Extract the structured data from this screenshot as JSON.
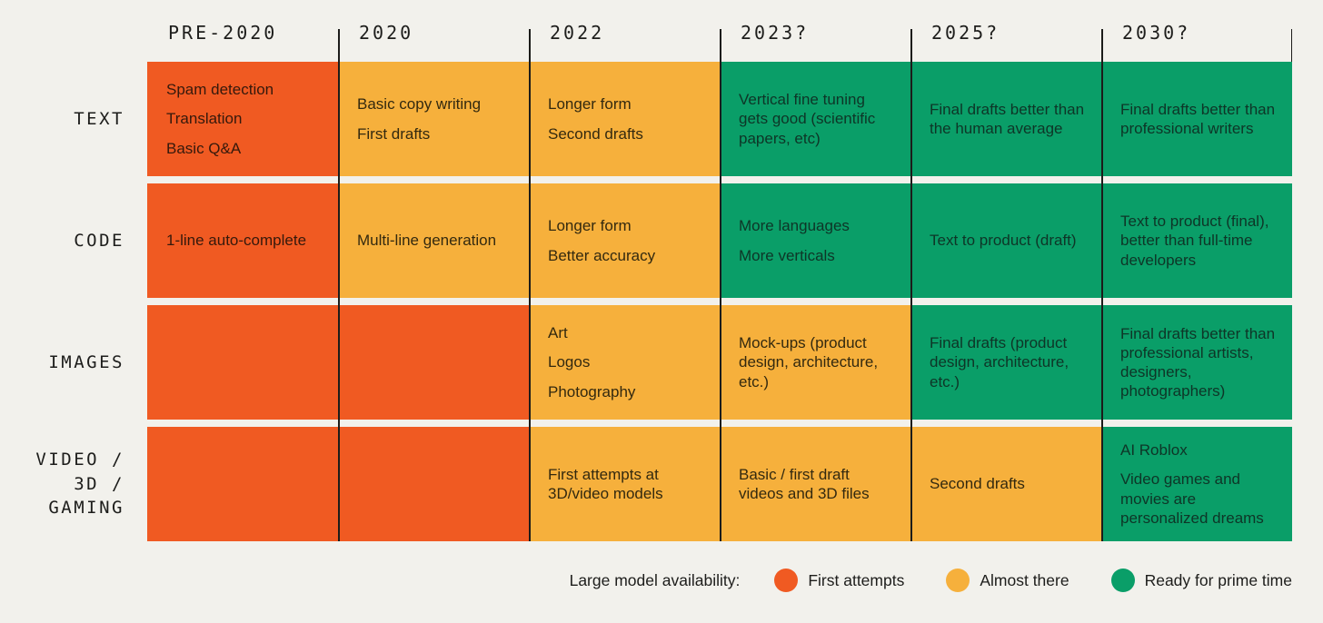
{
  "colors": {
    "background": "#f2f1ec",
    "first_attempts": "#f05a22",
    "almost_there": "#f6b03c",
    "ready": "#0a9e68",
    "heading_text": "#1d1d1b",
    "grid_line": "#1c1c1a",
    "text_on_first_attempts": "#35190c",
    "text_on_almost_there": "#33290f",
    "text_on_ready": "#0e3527"
  },
  "columns": [
    "PRE-2020",
    "2020",
    "2022",
    "2023?",
    "2025?",
    "2030?"
  ],
  "rows": [
    {
      "label_lines": [
        "TEXT"
      ],
      "cells": [
        {
          "status": "first_attempts",
          "items": [
            "Spam detection",
            "Translation",
            "Basic Q&A"
          ]
        },
        {
          "status": "almost_there",
          "items": [
            "Basic copy writing",
            "First drafts"
          ]
        },
        {
          "status": "almost_there",
          "items": [
            "Longer form",
            "Second drafts"
          ]
        },
        {
          "status": "ready",
          "items": [
            "Vertical fine tuning gets good (scientific papers, etc)"
          ]
        },
        {
          "status": "ready",
          "items": [
            "Final drafts better than the human average"
          ]
        },
        {
          "status": "ready",
          "items": [
            "Final drafts better than professional writers"
          ]
        }
      ]
    },
    {
      "label_lines": [
        "CODE"
      ],
      "cells": [
        {
          "status": "first_attempts",
          "items": [
            "1-line auto-complete"
          ]
        },
        {
          "status": "almost_there",
          "items": [
            "Multi-line generation"
          ]
        },
        {
          "status": "almost_there",
          "items": [
            "Longer form",
            "Better accuracy"
          ]
        },
        {
          "status": "ready",
          "items": [
            "More languages",
            "More verticals"
          ]
        },
        {
          "status": "ready",
          "items": [
            "Text to product (draft)"
          ]
        },
        {
          "status": "ready",
          "items": [
            "Text to product (final), better than full-time developers"
          ]
        }
      ]
    },
    {
      "label_lines": [
        "IMAGES"
      ],
      "cells": [
        {
          "status": "first_attempts",
          "items": []
        },
        {
          "status": "first_attempts",
          "items": []
        },
        {
          "status": "almost_there",
          "items": [
            "Art",
            "Logos",
            "Photography"
          ]
        },
        {
          "status": "almost_there",
          "items": [
            "Mock-ups (product design, architecture, etc.)"
          ]
        },
        {
          "status": "ready",
          "items": [
            "Final drafts (product design, architecture, etc.)"
          ]
        },
        {
          "status": "ready",
          "items": [
            "Final drafts better than professional artists, designers, photographers)"
          ]
        }
      ]
    },
    {
      "label_lines": [
        "VIDEO /",
        "3D /",
        "GAMING"
      ],
      "cells": [
        {
          "status": "first_attempts",
          "items": []
        },
        {
          "status": "first_attempts",
          "items": []
        },
        {
          "status": "almost_there",
          "items": [
            "First attempts at 3D/video models"
          ]
        },
        {
          "status": "almost_there",
          "items": [
            "Basic / first draft videos and 3D files"
          ]
        },
        {
          "status": "almost_there",
          "items": [
            "Second drafts"
          ]
        },
        {
          "status": "ready",
          "items": [
            "AI Roblox",
            "Video games and movies are personalized dreams"
          ]
        }
      ]
    }
  ],
  "legend": {
    "title": "Large model availability:",
    "items": [
      {
        "label": "First attempts",
        "status": "first_attempts"
      },
      {
        "label": "Almost there",
        "status": "almost_there"
      },
      {
        "label": "Ready for prime time",
        "status": "ready"
      }
    ]
  },
  "chart_data": {
    "type": "table",
    "title": "Large model availability by modality over time",
    "columns": [
      "PRE-2020",
      "2020",
      "2022",
      "2023?",
      "2025?",
      "2030?"
    ],
    "row_labels": [
      "TEXT",
      "CODE",
      "IMAGES",
      "VIDEO / 3D / GAMING"
    ],
    "status_scale": [
      "first_attempts",
      "almost_there",
      "ready"
    ],
    "status_labels": {
      "first_attempts": "First attempts",
      "almost_there": "Almost there",
      "ready": "Ready for prime time"
    },
    "cell_statuses": [
      [
        "first_attempts",
        "almost_there",
        "almost_there",
        "ready",
        "ready",
        "ready"
      ],
      [
        "first_attempts",
        "almost_there",
        "almost_there",
        "ready",
        "ready",
        "ready"
      ],
      [
        "first_attempts",
        "first_attempts",
        "almost_there",
        "almost_there",
        "ready",
        "ready"
      ],
      [
        "first_attempts",
        "first_attempts",
        "almost_there",
        "almost_there",
        "almost_there",
        "ready"
      ]
    ],
    "legend_position": "bottom-right"
  }
}
